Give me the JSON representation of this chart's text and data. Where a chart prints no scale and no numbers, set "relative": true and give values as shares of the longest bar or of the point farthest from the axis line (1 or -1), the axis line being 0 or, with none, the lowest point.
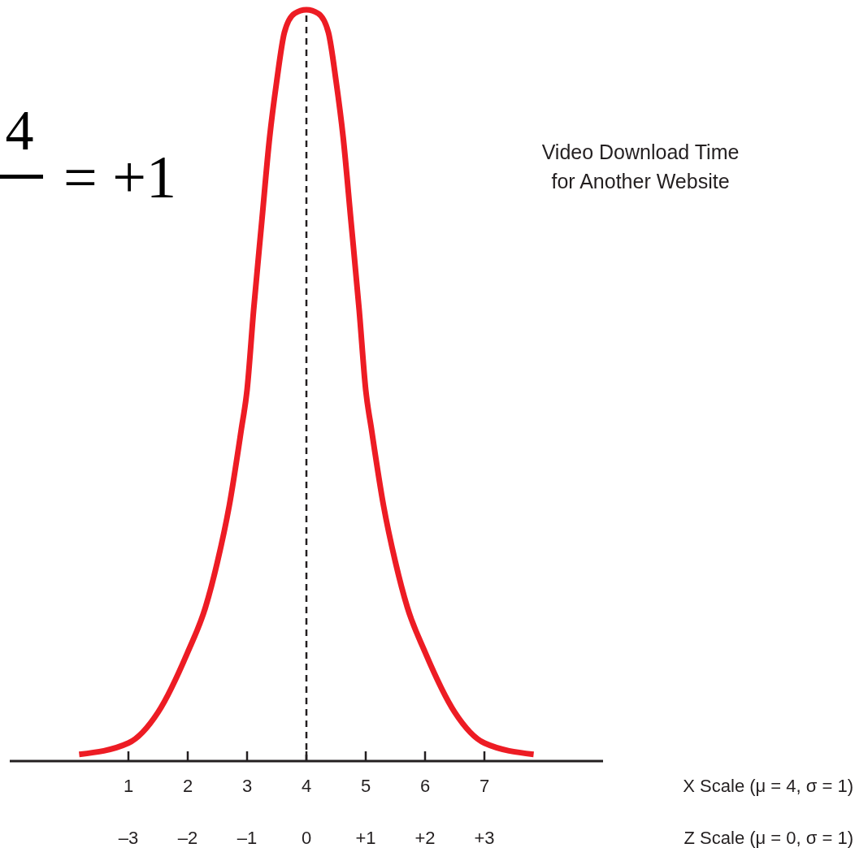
{
  "chart_data": {
    "type": "line",
    "relative": true,
    "title": "Video Download Time\nfor Another Website",
    "xlabel": "X Scale (μ = 4, σ = 1)",
    "x2label": "Z Scale (μ = 0, σ = 1)",
    "xlim": [
      -1,
      9
    ],
    "xticks": [
      1,
      2,
      3,
      4,
      5,
      6,
      7
    ],
    "x2lim": [
      -5,
      5
    ],
    "x2ticks": [
      {
        "value": -3,
        "label": "–3"
      },
      {
        "value": -2,
        "label": "–2"
      },
      {
        "value": -1,
        "label": "–1"
      },
      0,
      {
        "value": 1,
        "label": "+1"
      },
      {
        "value": 2,
        "label": "+2"
      },
      {
        "value": 3,
        "label": "+3"
      }
    ],
    "series": [
      {
        "color": "#ed1c24",
        "x": [
          0.17,
          1,
          1.5,
          2,
          2.3,
          2.5,
          2.7,
          2.9,
          3,
          3.11,
          3.25,
          3.38,
          3.5,
          3.63,
          3.8,
          4,
          4.2,
          4.37,
          4.5,
          4.62,
          4.75,
          4.89,
          5,
          5.1,
          5.3,
          5.5,
          5.7,
          6,
          6.5,
          7,
          7.83
        ],
        "values": [
          0.009,
          0.024,
          0.065,
          0.145,
          0.205,
          0.265,
          0.34,
          0.44,
          0.494,
          0.6,
          0.72,
          0.83,
          0.905,
          0.97,
          0.995,
          1,
          0.995,
          0.97,
          0.905,
          0.83,
          0.72,
          0.6,
          0.494,
          0.44,
          0.34,
          0.265,
          0.205,
          0.145,
          0.065,
          0.024,
          0.009
        ]
      }
    ],
    "ref_lines": [
      {
        "axis": "x",
        "value": 4,
        "color": "#231f20",
        "line_style": "dashed"
      }
    ],
    "annotations": [
      "4",
      "= +1"
    ],
    "grid": false,
    "marker": "none",
    "line_style": "solid"
  }
}
